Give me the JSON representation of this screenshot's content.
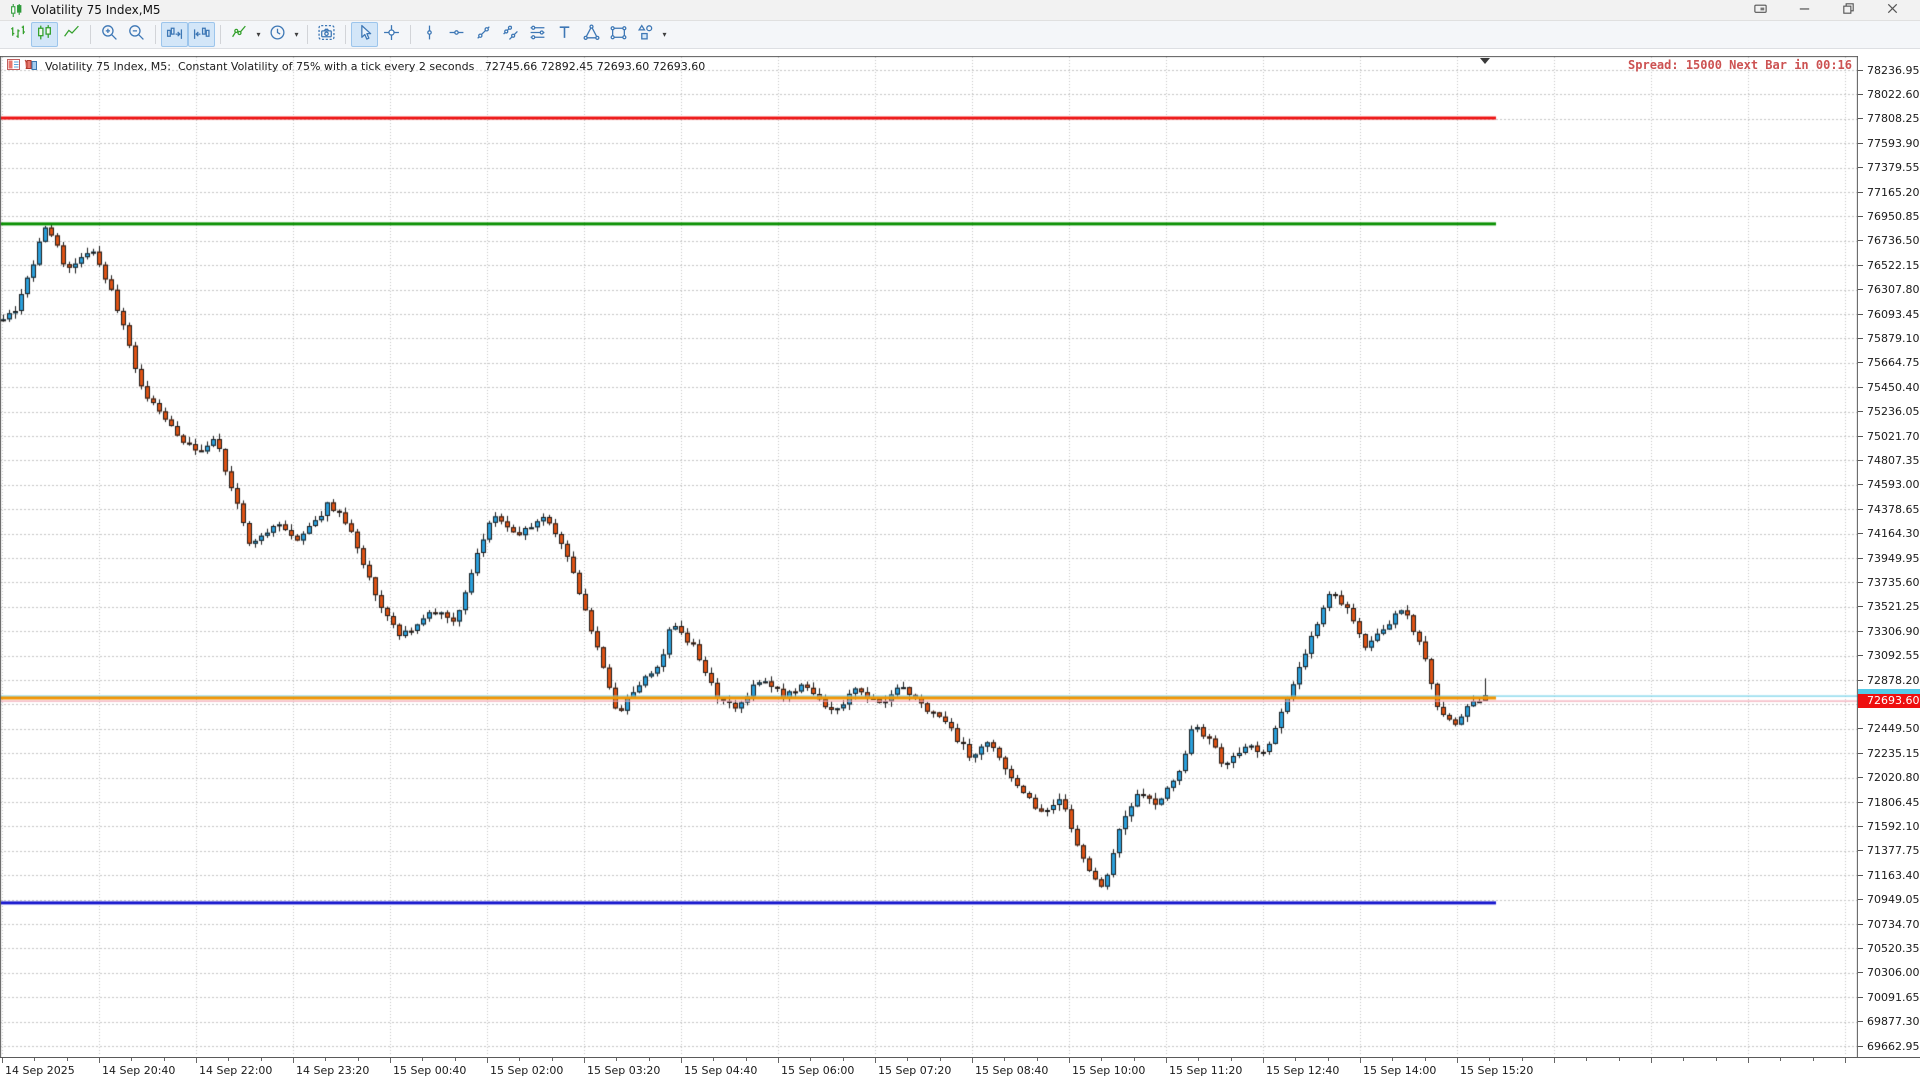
{
  "window": {
    "title": "Volatility 75 Index,M5",
    "logo_icon": "candlestick-logo-icon",
    "controls": [
      "dock-window-icon",
      "minimize-icon",
      "restore-icon",
      "close-icon"
    ]
  },
  "toolbar": {
    "buttons": [
      {
        "icon": "bar-chart-icon",
        "active": false
      },
      {
        "icon": "candlestick-chart-icon",
        "active": true
      },
      {
        "icon": "line-chart-icon",
        "active": false
      },
      {
        "sep": true
      },
      {
        "icon": "zoom-in-icon",
        "active": false
      },
      {
        "icon": "zoom-out-icon",
        "active": false
      },
      {
        "sep": true
      },
      {
        "icon": "auto-scroll-icon",
        "active": true
      },
      {
        "icon": "chart-shift-icon",
        "active": true
      },
      {
        "sep": true
      },
      {
        "icon": "indicators-icon",
        "active": false,
        "caret": true
      },
      {
        "icon": "periods-clock-icon",
        "active": false,
        "caret": true
      },
      {
        "sep": true
      },
      {
        "icon": "screenshot-camera-icon",
        "active": false
      },
      {
        "sep": true
      },
      {
        "icon": "cursor-icon",
        "active": true
      },
      {
        "icon": "crosshair-icon",
        "active": false
      },
      {
        "sep": true
      },
      {
        "icon": "vertical-line-icon",
        "active": false
      },
      {
        "icon": "horizontal-line-icon",
        "active": false
      },
      {
        "icon": "trendline-icon",
        "active": false
      },
      {
        "icon": "channel-icon",
        "active": false
      },
      {
        "icon": "fibonacci-icon",
        "active": false
      },
      {
        "icon": "text-label-icon",
        "active": false
      },
      {
        "icon": "triangle-shape-icon",
        "active": false
      },
      {
        "icon": "rectangle-shape-icon",
        "active": false
      },
      {
        "icon": "shapes-icon",
        "active": false,
        "caret": true
      }
    ]
  },
  "chart": {
    "info_icons": [
      "one-click-trading-icon",
      "depth-of-market-icon"
    ],
    "info_line": "Volatility 75 Index, M5:  Constant Volatility of 75% with a tick every 2 seconds   72745.66 72892.45 72693.60 72693.60",
    "overlay_right": "Spread: 15000 Next Bar in 00:16",
    "current_price": "72693.60",
    "colors": {
      "bull": "#2aa0dc",
      "bear": "#df5214",
      "outline": "#1a1a1a",
      "grid": "#c6c6c6",
      "ask_line": "#72d2e8",
      "bid_line": "#f2a6b4",
      "badge_bid_bg": "#ee0f0f",
      "badge_ask_bg": "#55c9e6",
      "spread_text": "#cc5252"
    }
  },
  "chart_data": {
    "type": "candlestick",
    "title": "Volatility 75 Index, M5",
    "bar_interval_minutes": 5,
    "bars_total": 248,
    "y_axis": {
      "top_label": 78236.95,
      "bottom_label": 69662.95,
      "step": 214.35,
      "labels": 41,
      "decimals": 2
    },
    "x_labels": [
      "14 Sep 2025",
      "14 Sep 20:40",
      "14 Sep 22:00",
      "14 Sep 23:20",
      "15 Sep 00:40",
      "15 Sep 02:00",
      "15 Sep 03:20",
      "15 Sep 04:40",
      "15 Sep 06:00",
      "15 Sep 07:20",
      "15 Sep 08:40",
      "15 Sep 10:00",
      "15 Sep 11:20",
      "15 Sep 12:40",
      "15 Sep 14:00",
      "15 Sep 15:20"
    ],
    "levels": [
      {
        "name": "resistance-line-red",
        "price": 77815,
        "color": "#ee1111"
      },
      {
        "name": "resistance-line-green",
        "price": 76885,
        "color": "#089000"
      },
      {
        "name": "support-line-orange",
        "price": 72720,
        "color": "#f29400"
      },
      {
        "name": "support-line-blue",
        "price": 70920,
        "color": "#1515cd"
      }
    ],
    "ask_line_price": 72737.0,
    "bid_price": 72693.6,
    "last_bar": {
      "open": 72745.66,
      "high": 72892.45,
      "low": 72693.6,
      "close": 72693.6
    },
    "price_path_anchors": [
      [
        0,
        76050
      ],
      [
        3,
        76150
      ],
      [
        8,
        76900
      ],
      [
        11,
        76500
      ],
      [
        16,
        76650
      ],
      [
        20,
        76100
      ],
      [
        24,
        75400
      ],
      [
        28,
        75150
      ],
      [
        33,
        74850
      ],
      [
        36,
        75000
      ],
      [
        42,
        74050
      ],
      [
        46,
        74250
      ],
      [
        50,
        74100
      ],
      [
        55,
        74430
      ],
      [
        58,
        74250
      ],
      [
        63,
        73600
      ],
      [
        67,
        73250
      ],
      [
        72,
        73500
      ],
      [
        76,
        73400
      ],
      [
        82,
        74320
      ],
      [
        86,
        74150
      ],
      [
        91,
        74300
      ],
      [
        95,
        73950
      ],
      [
        100,
        73100
      ],
      [
        103,
        72580
      ],
      [
        106,
        72800
      ],
      [
        110,
        73000
      ],
      [
        112,
        73370
      ],
      [
        116,
        73150
      ],
      [
        120,
        72700
      ],
      [
        123,
        72620
      ],
      [
        127,
        72900
      ],
      [
        131,
        72720
      ],
      [
        134,
        72850
      ],
      [
        139,
        72600
      ],
      [
        143,
        72800
      ],
      [
        147,
        72650
      ],
      [
        150,
        72850
      ],
      [
        153,
        72700
      ],
      [
        158,
        72480
      ],
      [
        162,
        72200
      ],
      [
        165,
        72350
      ],
      [
        170,
        71900
      ],
      [
        174,
        71700
      ],
      [
        177,
        71850
      ],
      [
        180,
        71350
      ],
      [
        184,
        71050
      ],
      [
        187,
        71600
      ],
      [
        190,
        71900
      ],
      [
        193,
        71780
      ],
      [
        197,
        72080
      ],
      [
        199,
        72480
      ],
      [
        202,
        72350
      ],
      [
        204,
        72100
      ],
      [
        208,
        72300
      ],
      [
        211,
        72220
      ],
      [
        215,
        72750
      ],
      [
        219,
        73300
      ],
      [
        222,
        73680
      ],
      [
        225,
        73480
      ],
      [
        228,
        73150
      ],
      [
        231,
        73350
      ],
      [
        234,
        73520
      ],
      [
        237,
        73180
      ],
      [
        240,
        72600
      ],
      [
        243,
        72500
      ],
      [
        245,
        72650
      ],
      [
        247,
        72693.6
      ]
    ]
  }
}
